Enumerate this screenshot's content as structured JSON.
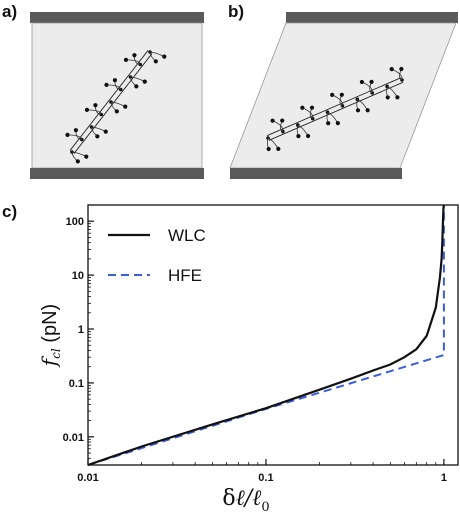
{
  "panels": {
    "a": {
      "label": "a)"
    },
    "b": {
      "label": "b)"
    },
    "c": {
      "label": "c)"
    }
  },
  "colors": {
    "plate": "#5a5a5a",
    "box_fill": "#ececec",
    "wlc": "#111111",
    "hfe": "#3a5fd9"
  },
  "chart_data": {
    "type": "line",
    "title": "",
    "xlabel": "δℓ/ℓ0",
    "ylabel": "fcl (pN)",
    "xscale": "log",
    "yscale": "log",
    "xlim": [
      0.01,
      1.2
    ],
    "ylim": [
      0.003,
      200
    ],
    "x_ticks": [
      {
        "value": 0.01,
        "label": "0.01"
      },
      {
        "value": 0.1,
        "label": "0.1"
      },
      {
        "value": 1,
        "label": "1"
      }
    ],
    "y_ticks": [
      {
        "value": 0.01,
        "label": "0.01"
      },
      {
        "value": 0.1,
        "label": "0.1"
      },
      {
        "value": 1,
        "label": "1"
      },
      {
        "value": 10,
        "label": "10"
      },
      {
        "value": 100,
        "label": "100"
      }
    ],
    "legend_position": "top-left",
    "grid": false,
    "series": [
      {
        "name": "WLC",
        "style": "solid",
        "x": [
          0.01,
          0.02,
          0.05,
          0.1,
          0.2,
          0.3,
          0.4,
          0.5,
          0.6,
          0.7,
          0.8,
          0.9,
          0.95,
          0.97,
          0.98,
          0.99,
          0.995,
          1.0
        ],
        "y": [
          0.003,
          0.0066,
          0.017,
          0.034,
          0.075,
          0.12,
          0.17,
          0.22,
          0.3,
          0.42,
          0.75,
          2.5,
          9,
          20,
          40,
          120,
          180,
          200
        ]
      },
      {
        "name": "HFE",
        "style": "dashed",
        "x": [
          0.01,
          0.1,
          1.0,
          1.0
        ],
        "y": [
          0.003,
          0.033,
          0.33,
          200
        ]
      }
    ]
  }
}
